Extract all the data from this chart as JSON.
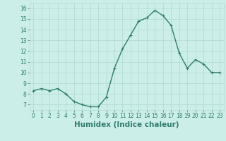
{
  "x": [
    0,
    1,
    2,
    3,
    4,
    5,
    6,
    7,
    8,
    9,
    10,
    11,
    12,
    13,
    14,
    15,
    16,
    17,
    18,
    19,
    20,
    21,
    22,
    23
  ],
  "y": [
    8.3,
    8.5,
    8.3,
    8.5,
    8.0,
    7.3,
    7.0,
    6.8,
    6.8,
    7.7,
    10.4,
    12.2,
    13.5,
    14.8,
    15.1,
    15.8,
    15.3,
    14.4,
    11.8,
    10.4,
    11.2,
    10.8,
    10.0,
    10.0
  ],
  "line_color": "#2e7d6e",
  "marker": "+",
  "marker_size": 3,
  "background_color": "#cceee8",
  "grid_color": "#b0d9d0",
  "xlabel": "Humidex (Indice chaleur)",
  "xlim": [
    -0.5,
    23.5
  ],
  "ylim": [
    6.5,
    16.5
  ],
  "yticks": [
    7,
    8,
    9,
    10,
    11,
    12,
    13,
    14,
    15,
    16
  ],
  "xticks": [
    0,
    1,
    2,
    3,
    4,
    5,
    6,
    7,
    8,
    9,
    10,
    11,
    12,
    13,
    14,
    15,
    16,
    17,
    18,
    19,
    20,
    21,
    22,
    23
  ],
  "tick_label_fontsize": 5.5,
  "xlabel_fontsize": 7.5,
  "line_width": 1.0,
  "tick_color": "#2e7d6e",
  "label_color": "#2e7d6e",
  "marker_edge_width": 0.8
}
